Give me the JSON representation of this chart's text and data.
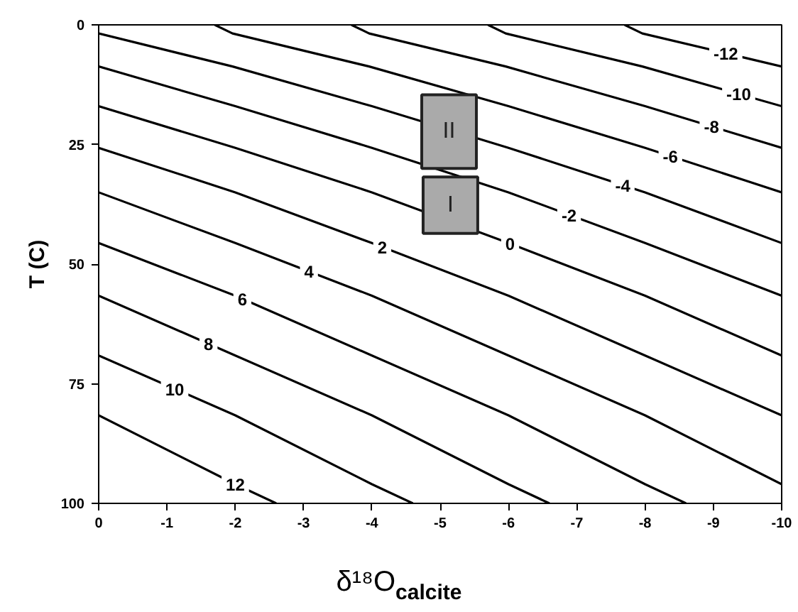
{
  "chart_data": {
    "type": "line",
    "xlabel": "δ¹⁸O$_{calcite}$",
    "ylabel": "T (C)",
    "xlim": [
      0,
      -10
    ],
    "ylim": [
      100,
      0
    ],
    "xticks": [
      0,
      -1,
      -2,
      -3,
      -4,
      -5,
      -6,
      -7,
      -8,
      -9,
      -10
    ],
    "yticks": [
      0,
      25,
      50,
      75,
      100
    ],
    "grid": false,
    "marker": "none",
    "line_style": "solid",
    "series": [
      {
        "name": "-12",
        "color": "#000000",
        "x": [
          -7.7,
          -7.96,
          -10
        ],
        "values": [
          0,
          1.8,
          8.7
        ]
      },
      {
        "name": "-10",
        "color": "#000000",
        "x": [
          -5.7,
          -5.96,
          -7.96,
          -10
        ],
        "values": [
          0,
          1.8,
          8.7,
          17
        ]
      },
      {
        "name": "-8",
        "color": "#000000",
        "x": [
          -3.7,
          -3.96,
          -5.96,
          -8,
          -10
        ],
        "values": [
          0,
          1.8,
          8.7,
          17,
          25.7
        ]
      },
      {
        "name": "-6",
        "color": "#000000",
        "x": [
          -1.7,
          -1.96,
          -3.96,
          -6,
          -8,
          -10
        ],
        "values": [
          0,
          1.8,
          8.7,
          17,
          25.7,
          35
        ]
      },
      {
        "name": "-4",
        "color": "#000000",
        "x": [
          0,
          -1.96,
          -4,
          -6,
          -8,
          -10
        ],
        "values": [
          1.8,
          8.7,
          17,
          25.7,
          35,
          45.6
        ]
      },
      {
        "name": "-2",
        "color": "#000000",
        "x": [
          0,
          -2,
          -4,
          -6,
          -8,
          -10
        ],
        "values": [
          8.7,
          17,
          25.7,
          35,
          45.6,
          56.6
        ]
      },
      {
        "name": "0",
        "color": "#000000",
        "x": [
          0,
          -2,
          -4,
          -6,
          -8,
          -10
        ],
        "values": [
          17,
          25.7,
          35,
          45.6,
          56.6,
          69.1
        ]
      },
      {
        "name": "2",
        "color": "#000000",
        "x": [
          0,
          -2,
          -4,
          -6,
          -8,
          -10
        ],
        "values": [
          25.7,
          35,
          45.6,
          56.6,
          69.1,
          81.6
        ]
      },
      {
        "name": "4",
        "color": "#000000",
        "x": [
          0,
          -2,
          -4,
          -6,
          -8,
          -10
        ],
        "values": [
          35,
          45.6,
          56.6,
          69.1,
          81.6,
          96
        ]
      },
      {
        "name": "6",
        "color": "#000000",
        "x": [
          0,
          -2,
          -4,
          -6,
          -8,
          -8.6
        ],
        "values": [
          45.6,
          56.6,
          69.1,
          81.6,
          96,
          100
        ]
      },
      {
        "name": "8",
        "color": "#000000",
        "x": [
          0,
          -2,
          -4,
          -6,
          -6.6
        ],
        "values": [
          56.6,
          69.1,
          81.6,
          96,
          100
        ]
      },
      {
        "name": "10",
        "color": "#000000",
        "x": [
          0,
          -2,
          -4,
          -4.6
        ],
        "values": [
          69.1,
          81.6,
          96,
          100
        ]
      },
      {
        "name": "12",
        "color": "#000000",
        "x": [
          0,
          -2,
          -2.6
        ],
        "values": [
          81.6,
          96,
          100
        ]
      },
      {
        "type": "bar",
        "color": "#aaaaaa",
        "x": [
          -5.13,
          -5.15
        ],
        "base": [
          14.6,
          31.8
        ],
        "values": [
          15.4,
          11.8
        ],
        "value_labels": [
          "II",
          "I"
        ]
      }
    ]
  }
}
